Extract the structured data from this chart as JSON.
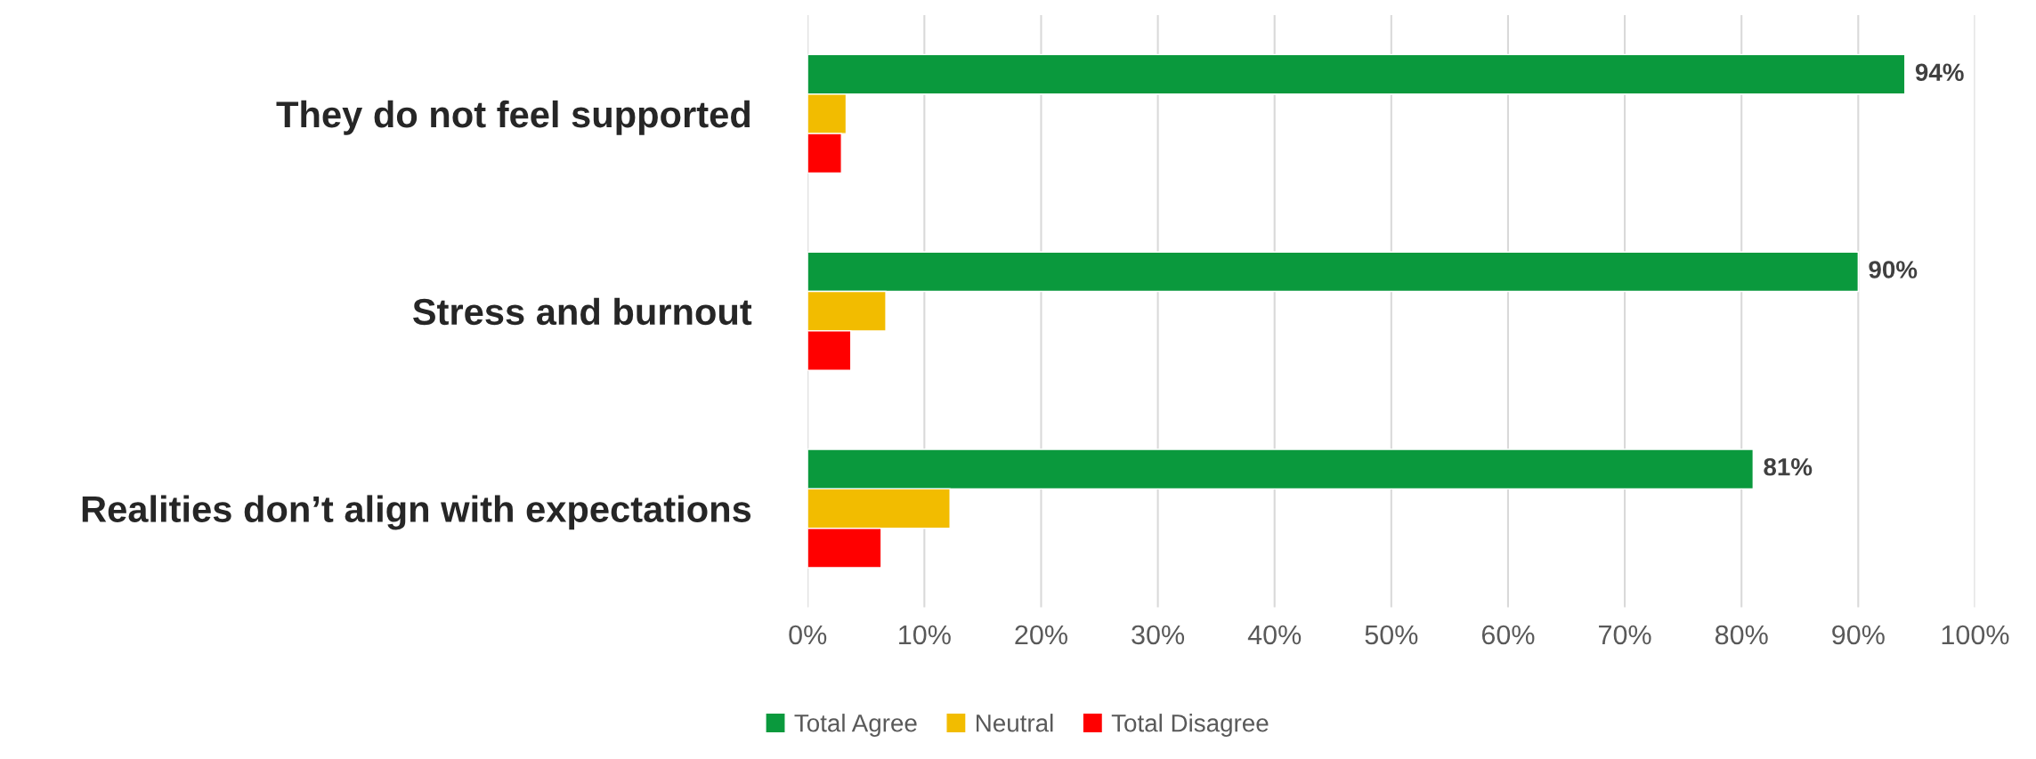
{
  "chart_data": {
    "type": "bar",
    "orientation": "horizontal",
    "categories": [
      "They do not feel supported",
      "Stress and burnout",
      "Realities don’t align with expectations"
    ],
    "series": [
      {
        "name": "Total Agree",
        "color": "#0a993d",
        "values": [
          94,
          90,
          81
        ],
        "value_labels": [
          "94%",
          "90%",
          "81%"
        ]
      },
      {
        "name": "Neutral",
        "color": "#f2bc00",
        "values": [
          3.3,
          6.7,
          12.2
        ]
      },
      {
        "name": "Total Disagree",
        "color": "#ff0000",
        "values": [
          2.9,
          3.7,
          6.3
        ]
      }
    ],
    "xlim": [
      0,
      100
    ],
    "xticks": [
      {
        "value": 0,
        "label": "0%"
      },
      {
        "value": 10,
        "label": "10%"
      },
      {
        "value": 20,
        "label": "20%"
      },
      {
        "value": 30,
        "label": "30%"
      },
      {
        "value": 40,
        "label": "40%"
      },
      {
        "value": 50,
        "label": "50%"
      },
      {
        "value": 60,
        "label": "60%"
      },
      {
        "value": 70,
        "label": "70%"
      },
      {
        "value": 80,
        "label": "80%"
      },
      {
        "value": 90,
        "label": "90%"
      },
      {
        "value": 100,
        "label": "100%"
      }
    ],
    "grid": "x",
    "legend": "bottom"
  }
}
